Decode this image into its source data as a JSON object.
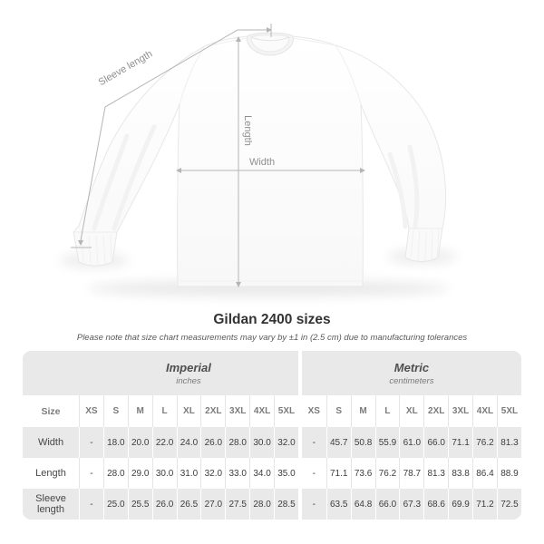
{
  "diagram": {
    "sleeve_length_label": "Sleeve length",
    "length_label": "Length",
    "width_label": "Width",
    "line_color": "#b5b5b5",
    "label_color": "#8f8f8f"
  },
  "heading": {
    "title": "Gildan 2400 sizes",
    "note": "Please note that size chart measurements may vary by ±1 in (2.5 cm) due to manufacturing tolerances"
  },
  "table": {
    "size_header": "Size",
    "groups": [
      {
        "label": "Imperial",
        "unit": "inches"
      },
      {
        "label": "Metric",
        "unit": "centimeters"
      }
    ],
    "size_columns": [
      "XS",
      "S",
      "M",
      "L",
      "XL",
      "2XL",
      "3XL",
      "4XL",
      "5XL"
    ],
    "rows": [
      {
        "label": "Width",
        "imperial": [
          "-",
          "18.0",
          "20.0",
          "22.0",
          "24.0",
          "26.0",
          "28.0",
          "30.0",
          "32.0"
        ],
        "metric": [
          "-",
          "45.7",
          "50.8",
          "55.9",
          "61.0",
          "66.0",
          "71.1",
          "76.2",
          "81.3"
        ]
      },
      {
        "label": "Length",
        "imperial": [
          "-",
          "28.0",
          "29.0",
          "30.0",
          "31.0",
          "32.0",
          "33.0",
          "34.0",
          "35.0"
        ],
        "metric": [
          "-",
          "71.1",
          "73.6",
          "76.2",
          "78.7",
          "81.3",
          "83.8",
          "86.4",
          "88.9"
        ]
      },
      {
        "label": "Sleeve length",
        "imperial": [
          "-",
          "25.0",
          "25.5",
          "26.0",
          "26.5",
          "27.0",
          "27.5",
          "28.0",
          "28.5"
        ],
        "metric": [
          "-",
          "63.5",
          "64.8",
          "66.0",
          "67.3",
          "68.6",
          "69.9",
          "71.2",
          "72.5"
        ]
      }
    ],
    "colors": {
      "stripe": "#e9e9e9",
      "separator_on_white": "#e5e5e5",
      "separator_on_gray": "#ffffff"
    }
  }
}
